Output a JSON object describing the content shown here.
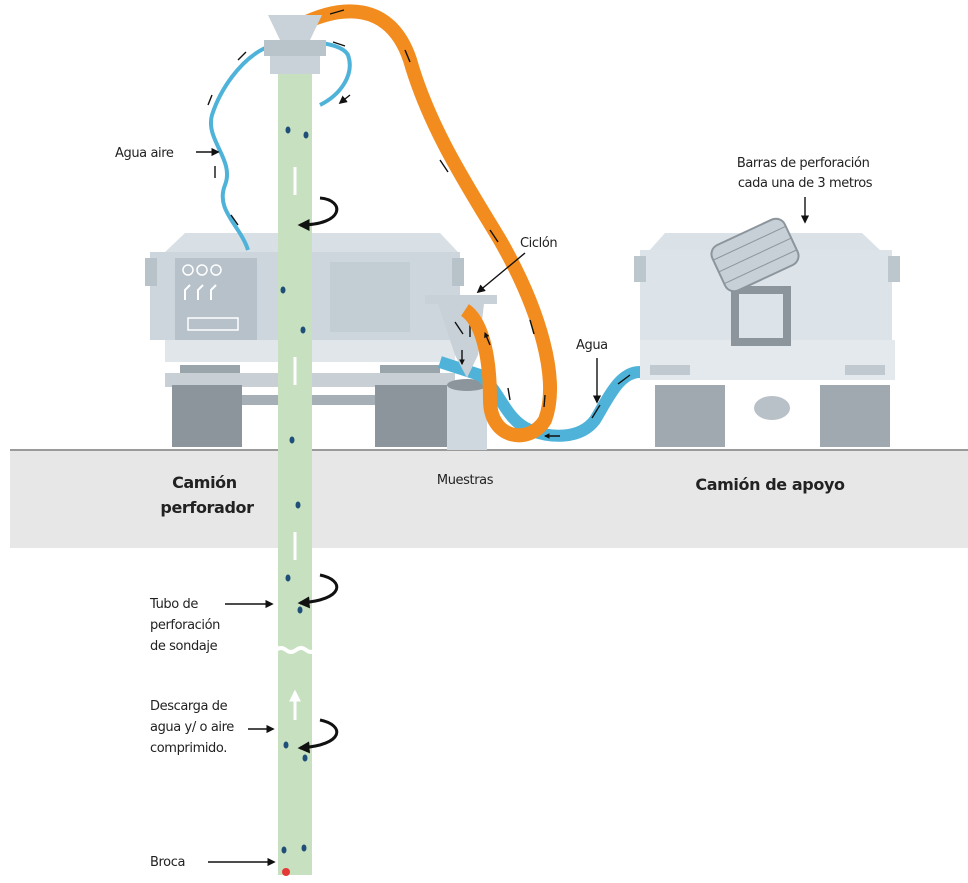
{
  "labels": {
    "water_air": "Agua aire",
    "rods": [
      "Barras de perforación",
      "cada una de 3 metros"
    ],
    "cyclone": "Ciclón",
    "water": "Agua",
    "samples": "Muestras",
    "drill_truck": [
      "Camión",
      "perforador"
    ],
    "support_truck": "Camión de apoyo",
    "drill_pipe": [
      "Tubo de",
      "perforación",
      "de sondaje"
    ],
    "discharge": [
      "Descarga de",
      "agua y/ o aire",
      "comprimido."
    ],
    "bit": "Broca"
  }
}
